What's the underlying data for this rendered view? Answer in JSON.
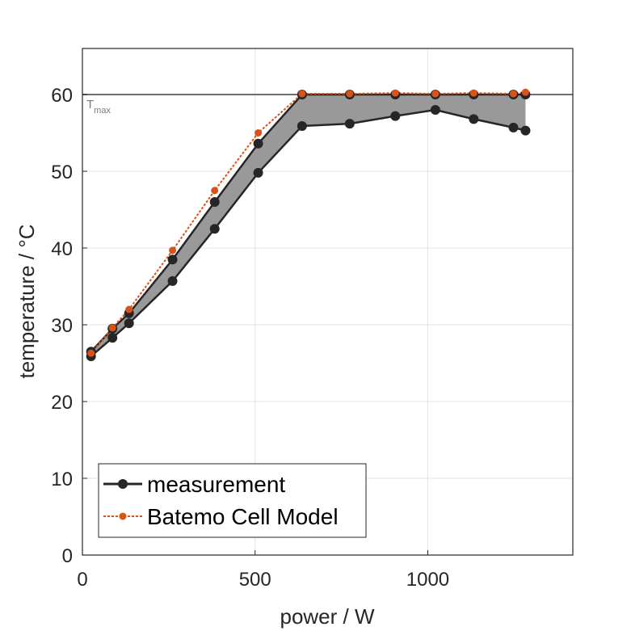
{
  "chart_data": {
    "type": "line",
    "xlabel": "power / W",
    "ylabel": "temperature / °C",
    "xlim": [
      0,
      1420
    ],
    "ylim": [
      0,
      66
    ],
    "xticks": [
      0,
      500,
      1000
    ],
    "yticks": [
      0,
      10,
      20,
      30,
      40,
      50,
      60
    ],
    "grid": true,
    "legend_position": "bottom-left",
    "reference_line": {
      "y": 60,
      "label": "T",
      "label_sub": "max"
    },
    "series": [
      {
        "name": "measurement",
        "role": "upper",
        "x": [
          25,
          87,
          135,
          261,
          383,
          509,
          636,
          774,
          906,
          1022,
          1133,
          1248,
          1283
        ],
        "y": [
          26.5,
          29.5,
          31.5,
          38.5,
          46.0,
          53.6,
          60.0,
          60.0,
          60.0,
          60.0,
          60.0,
          60.0,
          60.0
        ]
      },
      {
        "name": "measurement",
        "role": "lower",
        "x": [
          25,
          87,
          135,
          261,
          383,
          509,
          636,
          774,
          906,
          1022,
          1133,
          1248,
          1283
        ],
        "y": [
          25.9,
          28.3,
          30.2,
          35.7,
          42.5,
          49.8,
          55.9,
          56.2,
          57.2,
          58.0,
          56.8,
          55.7,
          55.3
        ]
      },
      {
        "name": "Batemo Cell Model",
        "x": [
          25,
          87,
          135,
          261,
          383,
          509,
          636,
          774,
          906,
          1022,
          1133,
          1248,
          1283
        ],
        "y": [
          26.3,
          29.6,
          32.0,
          39.7,
          47.5,
          55.0,
          60.1,
          60.1,
          60.2,
          60.1,
          60.2,
          60.1,
          60.3
        ]
      }
    ],
    "colors": {
      "measurement": "#262626",
      "model": "#d95319",
      "fill": "#999999",
      "tmax_line": "#6e6e6e",
      "grid": "#e3e3e3"
    }
  }
}
